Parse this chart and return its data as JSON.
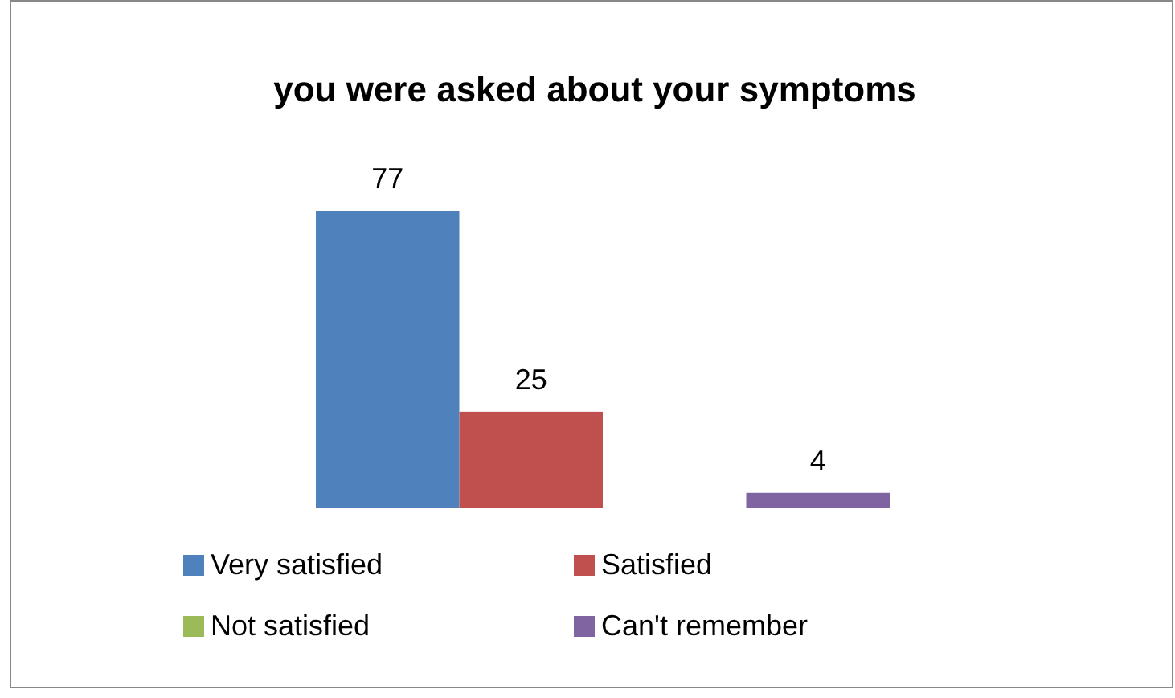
{
  "chart_data": {
    "type": "bar",
    "title": "you were asked about your symptoms",
    "categories": [
      null
    ],
    "series": [
      {
        "name": "Very satisfied",
        "color": "#4f81bd",
        "values": [
          77
        ]
      },
      {
        "name": "Satisfied",
        "color": "#c0504d",
        "values": [
          25
        ]
      },
      {
        "name": "Not satisfied",
        "color": "#9bbb59",
        "values": [
          null
        ]
      },
      {
        "name": "Can't remember",
        "color": "#8064a2",
        "values": [
          4
        ]
      }
    ],
    "data_labels": true,
    "legend": "bottom"
  }
}
